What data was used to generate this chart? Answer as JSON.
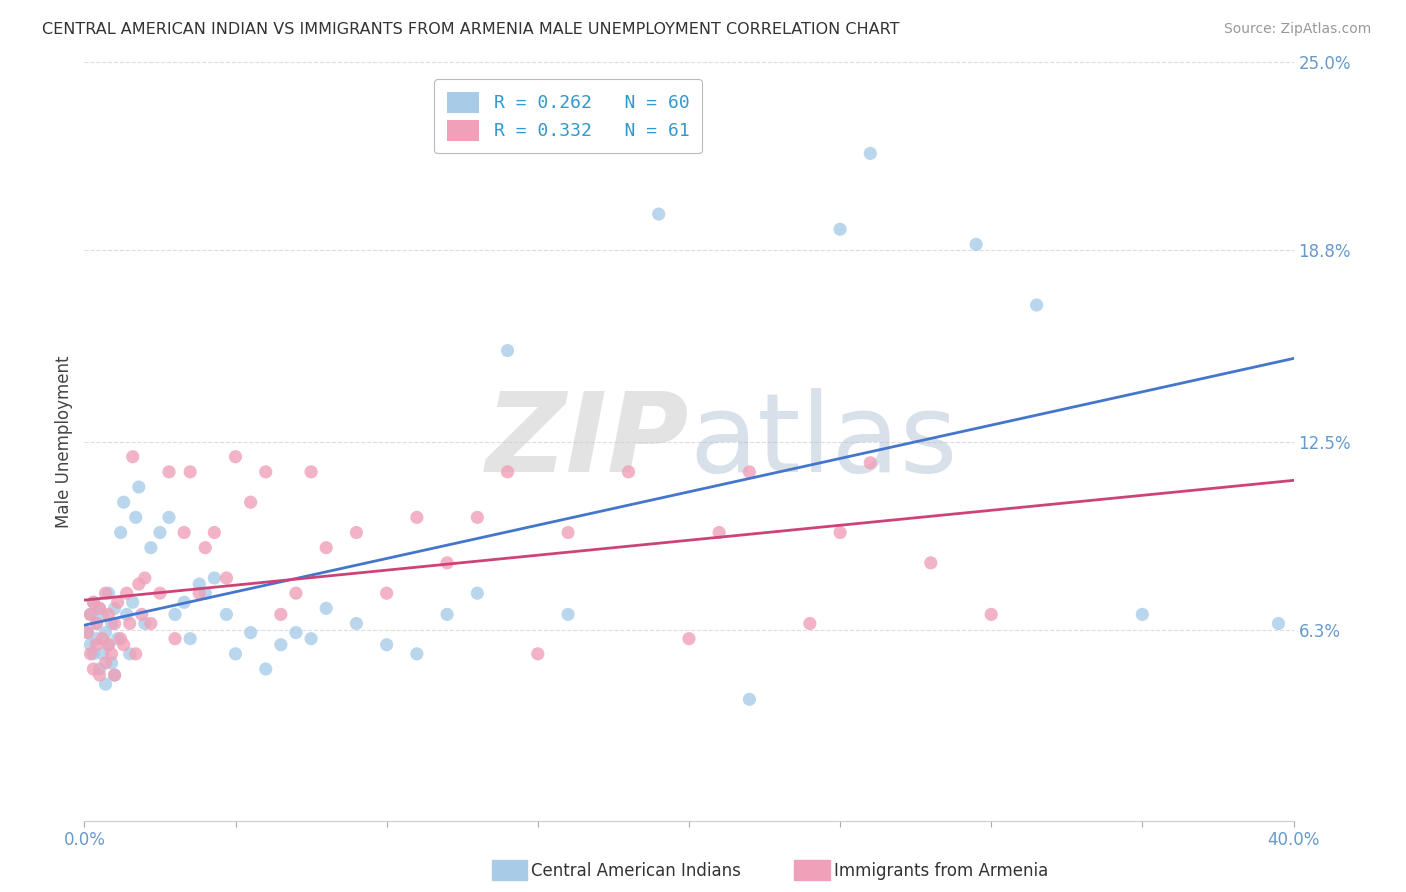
{
  "title": "CENTRAL AMERICAN INDIAN VS IMMIGRANTS FROM ARMENIA MALE UNEMPLOYMENT CORRELATION CHART",
  "source": "Source: ZipAtlas.com",
  "ylabel": "Male Unemployment",
  "xlim": [
    0.0,
    0.4
  ],
  "ylim": [
    0.0,
    0.25
  ],
  "xticks": [
    0.0,
    0.05,
    0.1,
    0.15,
    0.2,
    0.25,
    0.3,
    0.35,
    0.4
  ],
  "xtick_labels_show": {
    "0.0": "0.0%",
    "0.40": "40.0%"
  },
  "yticks": [
    0.0,
    0.063,
    0.125,
    0.188,
    0.25
  ],
  "ytick_labels": [
    "",
    "6.3%",
    "12.5%",
    "18.8%",
    "25.0%"
  ],
  "watermark_zip": "ZIP",
  "watermark_atlas": "atlas",
  "series": [
    {
      "label": "Central American Indians",
      "color": "#A8CCE8",
      "R": 0.262,
      "N": 60,
      "line_color": "#4477CC",
      "x": [
        0.001,
        0.002,
        0.002,
        0.003,
        0.003,
        0.004,
        0.004,
        0.005,
        0.005,
        0.006,
        0.006,
        0.007,
        0.007,
        0.008,
        0.008,
        0.009,
        0.009,
        0.01,
        0.01,
        0.011,
        0.012,
        0.013,
        0.014,
        0.015,
        0.016,
        0.017,
        0.018,
        0.02,
        0.022,
        0.025,
        0.028,
        0.03,
        0.033,
        0.035,
        0.038,
        0.04,
        0.043,
        0.047,
        0.05,
        0.055,
        0.06,
        0.065,
        0.07,
        0.075,
        0.08,
        0.09,
        0.1,
        0.11,
        0.12,
        0.13,
        0.14,
        0.16,
        0.19,
        0.22,
        0.25,
        0.26,
        0.295,
        0.315,
        0.35,
        0.395
      ],
      "y": [
        0.062,
        0.058,
        0.068,
        0.055,
        0.072,
        0.06,
        0.065,
        0.05,
        0.07,
        0.055,
        0.068,
        0.045,
        0.062,
        0.058,
        0.075,
        0.052,
        0.065,
        0.048,
        0.07,
        0.06,
        0.095,
        0.105,
        0.068,
        0.055,
        0.072,
        0.1,
        0.11,
        0.065,
        0.09,
        0.095,
        0.1,
        0.068,
        0.072,
        0.06,
        0.078,
        0.075,
        0.08,
        0.068,
        0.055,
        0.062,
        0.05,
        0.058,
        0.062,
        0.06,
        0.07,
        0.065,
        0.058,
        0.055,
        0.068,
        0.075,
        0.155,
        0.068,
        0.2,
        0.04,
        0.195,
        0.22,
        0.19,
        0.17,
        0.068,
        0.065
      ]
    },
    {
      "label": "Immigrants from Armenia",
      "color": "#F0A0B8",
      "R": 0.332,
      "N": 61,
      "line_color": "#CC4477",
      "x": [
        0.001,
        0.002,
        0.002,
        0.003,
        0.003,
        0.004,
        0.004,
        0.005,
        0.005,
        0.006,
        0.007,
        0.007,
        0.008,
        0.008,
        0.009,
        0.01,
        0.01,
        0.011,
        0.012,
        0.013,
        0.014,
        0.015,
        0.016,
        0.017,
        0.018,
        0.019,
        0.02,
        0.022,
        0.025,
        0.028,
        0.03,
        0.033,
        0.035,
        0.038,
        0.04,
        0.043,
        0.047,
        0.05,
        0.055,
        0.06,
        0.065,
        0.07,
        0.075,
        0.08,
        0.09,
        0.1,
        0.11,
        0.12,
        0.13,
        0.14,
        0.15,
        0.16,
        0.18,
        0.2,
        0.21,
        0.22,
        0.24,
        0.25,
        0.26,
        0.28,
        0.3
      ],
      "y": [
        0.062,
        0.055,
        0.068,
        0.05,
        0.072,
        0.058,
        0.065,
        0.048,
        0.07,
        0.06,
        0.052,
        0.075,
        0.058,
        0.068,
        0.055,
        0.065,
        0.048,
        0.072,
        0.06,
        0.058,
        0.075,
        0.065,
        0.12,
        0.055,
        0.078,
        0.068,
        0.08,
        0.065,
        0.075,
        0.115,
        0.06,
        0.095,
        0.115,
        0.075,
        0.09,
        0.095,
        0.08,
        0.12,
        0.105,
        0.115,
        0.068,
        0.075,
        0.115,
        0.09,
        0.095,
        0.075,
        0.1,
        0.085,
        0.1,
        0.115,
        0.055,
        0.095,
        0.115,
        0.06,
        0.095,
        0.115,
        0.065,
        0.095,
        0.118,
        0.085,
        0.068
      ]
    }
  ],
  "background_color": "#FFFFFF",
  "grid_color": "#DDDDDD",
  "title_color": "#333333",
  "axis_label_color": "#444444",
  "tick_label_color": "#6699CC",
  "legend_edge_color": "#AAAAAA"
}
